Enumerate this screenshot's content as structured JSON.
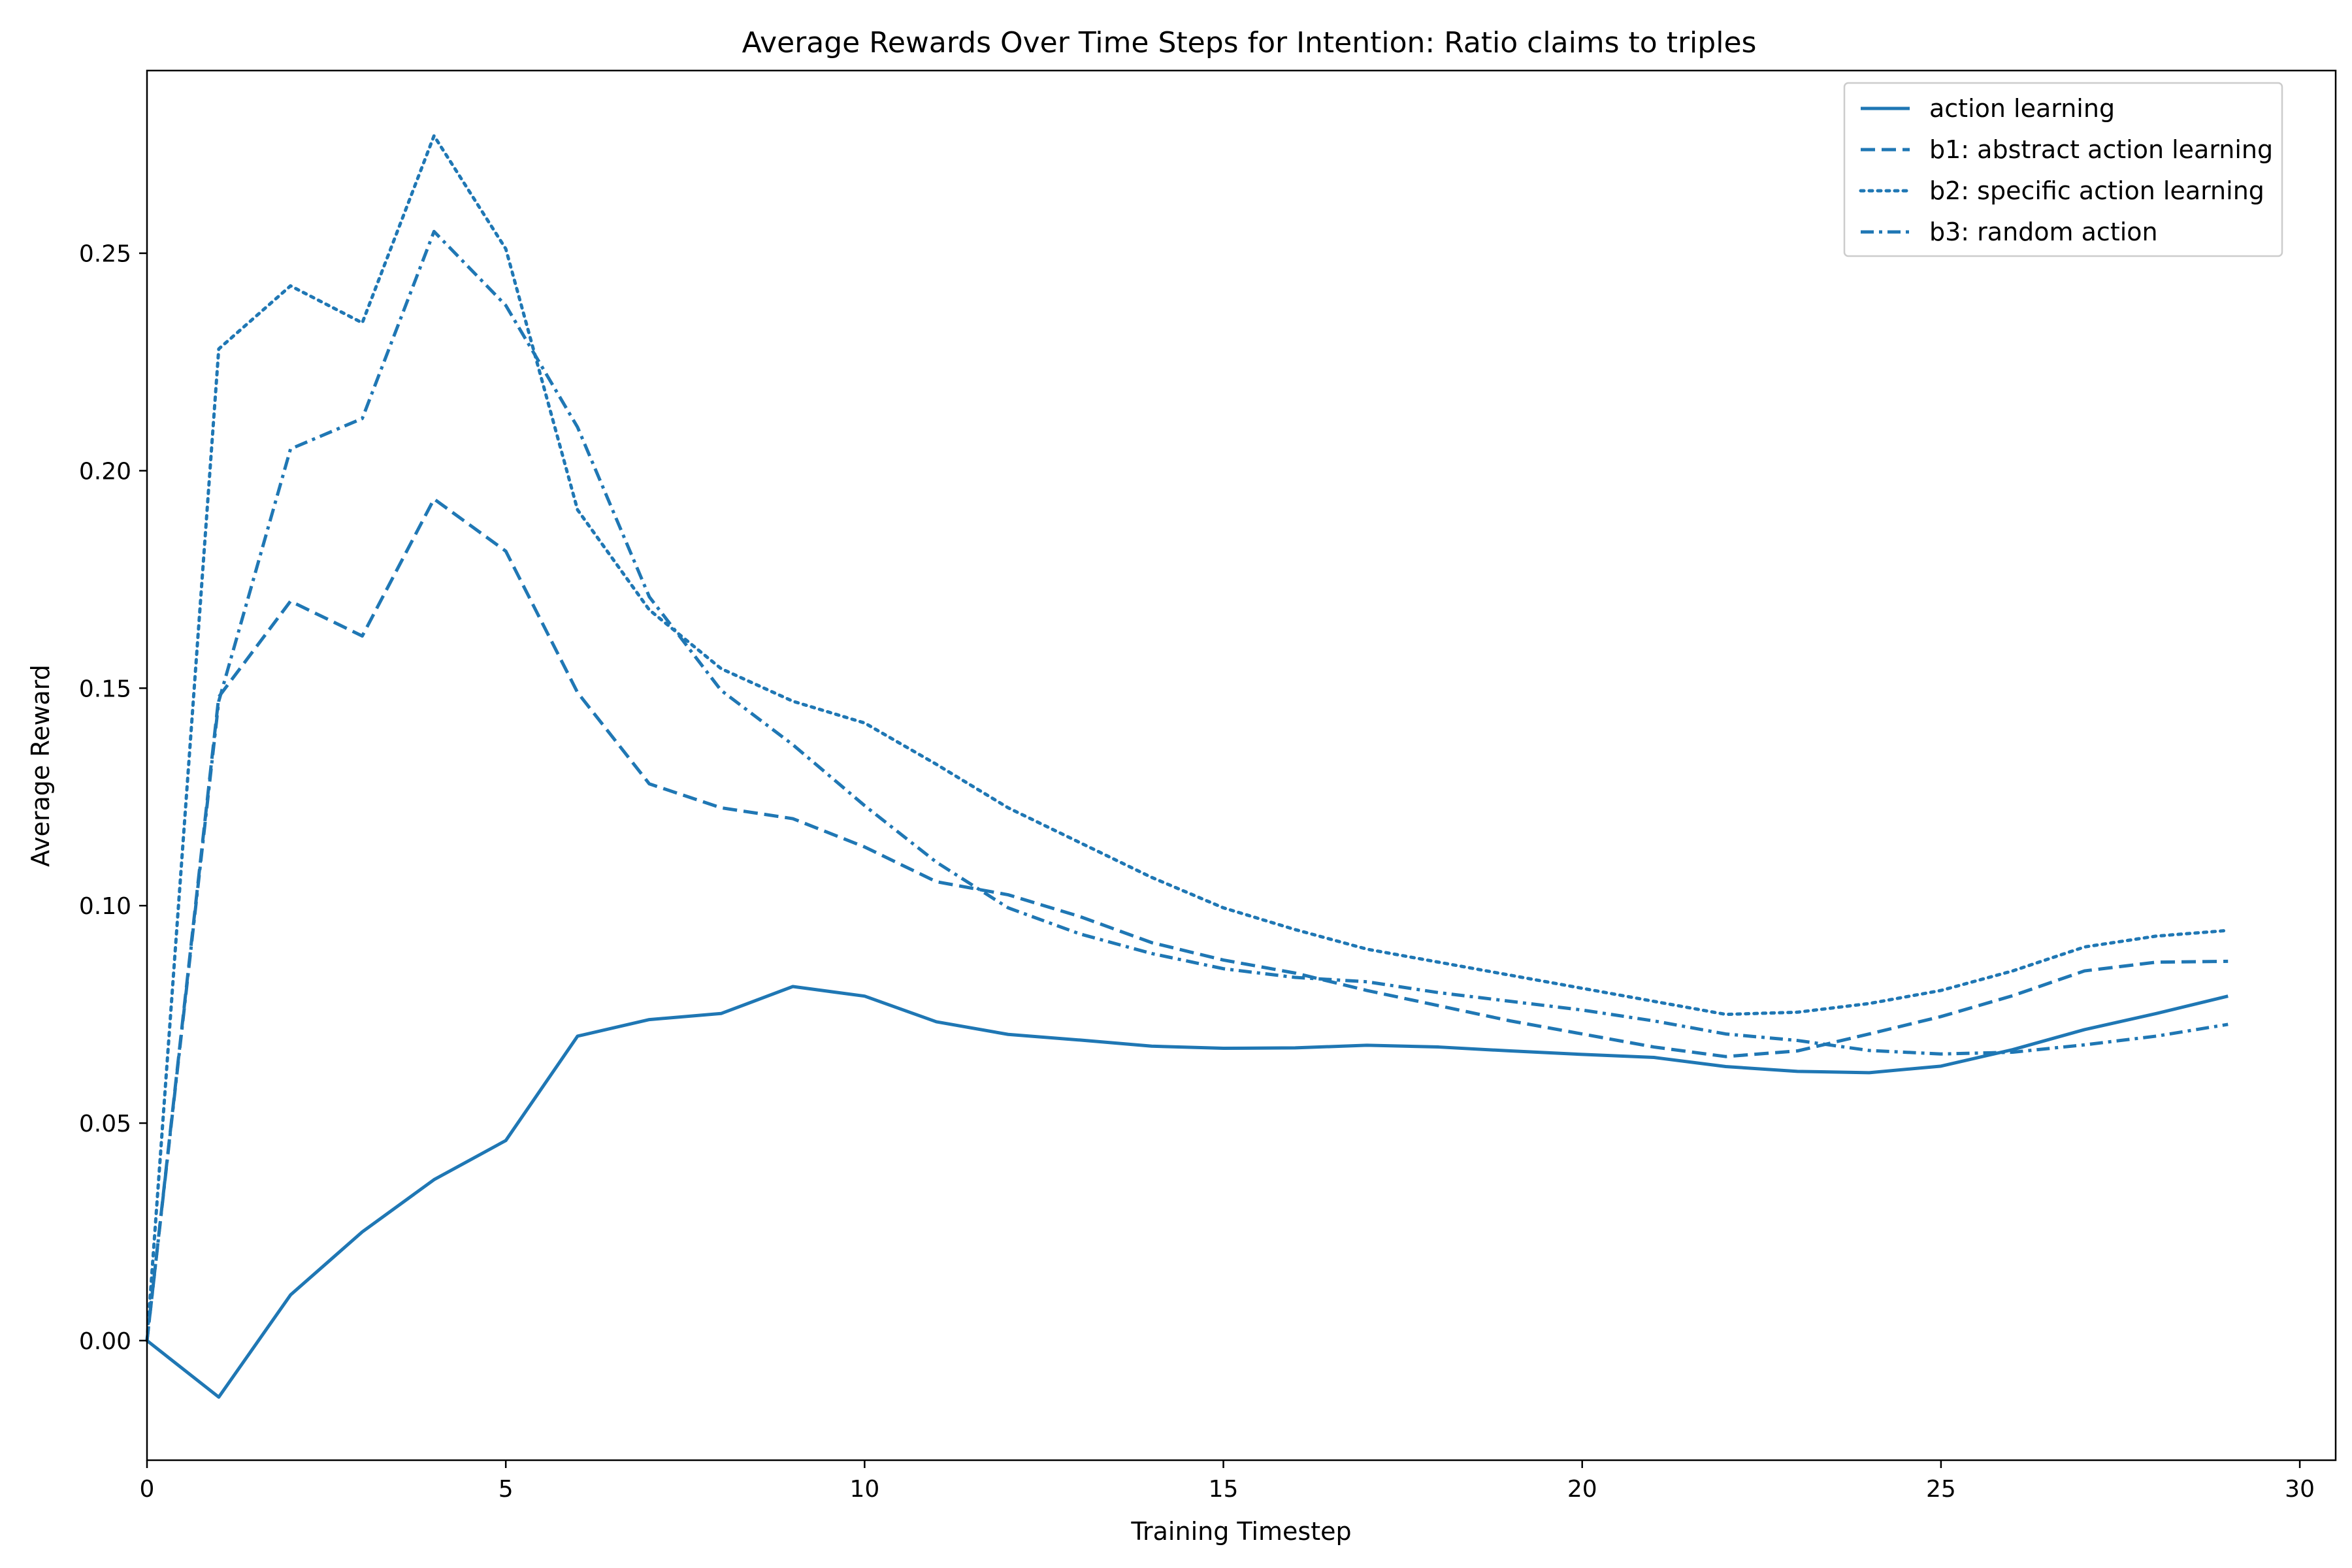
{
  "chart_data": {
    "type": "line",
    "title": "Average Rewards Over Time Steps for Intention: Ratio claims to triples",
    "xlabel": "Training Timestep",
    "ylabel": "Average Reward",
    "xlim": [
      0,
      30.5
    ],
    "ylim": [
      -0.0275,
      0.292
    ],
    "xticks": [
      0,
      5,
      10,
      15,
      20,
      25,
      30
    ],
    "xtick_labels": [
      "0",
      "5",
      "10",
      "15",
      "20",
      "25",
      "30"
    ],
    "yticks": [
      0.0,
      0.05,
      0.1,
      0.15,
      0.2,
      0.25
    ],
    "ytick_labels": [
      "0.00",
      "0.05",
      "0.10",
      "0.15",
      "0.20",
      "0.25"
    ],
    "grid": false,
    "legend_position": "top-right",
    "color": "#1f77b4",
    "x": [
      0,
      1,
      2,
      3,
      4,
      5,
      6,
      7,
      8,
      9,
      10,
      11,
      12,
      13,
      14,
      15,
      16,
      17,
      18,
      19,
      20,
      21,
      22,
      23,
      24,
      25,
      26,
      27,
      28,
      29
    ],
    "series": [
      {
        "name": "action learning",
        "style": "solid",
        "values": [
          0.0,
          -0.013,
          0.0105,
          0.025,
          0.037,
          0.046,
          0.07,
          0.0738,
          0.0752,
          0.0814,
          0.0792,
          0.0733,
          0.0704,
          0.0691,
          0.0677,
          0.0672,
          0.0673,
          0.0679,
          0.0675,
          0.0666,
          0.0658,
          0.0651,
          0.063,
          0.0619,
          0.0616,
          0.0631,
          0.0669,
          0.0715,
          0.0752,
          0.0792
        ]
      },
      {
        "name": "b1: abstract action learning",
        "style": "dashed",
        "values": [
          0.0,
          0.148,
          0.17,
          0.162,
          0.1935,
          0.1815,
          0.149,
          0.128,
          0.1225,
          0.12,
          0.1135,
          0.1055,
          0.1025,
          0.0975,
          0.0915,
          0.0875,
          0.0845,
          0.0805,
          0.077,
          0.0735,
          0.0705,
          0.0675,
          0.0653,
          0.0666,
          0.0705,
          0.0745,
          0.0793,
          0.085,
          0.087,
          0.0872
        ]
      },
      {
        "name": "b2: specific action learning",
        "style": "dotted",
        "values": [
          0.0,
          0.228,
          0.2425,
          0.234,
          0.277,
          0.251,
          0.191,
          0.168,
          0.1545,
          0.147,
          0.142,
          0.1325,
          0.1225,
          0.1145,
          0.1065,
          0.0995,
          0.0945,
          0.09,
          0.087,
          0.084,
          0.081,
          0.078,
          0.075,
          0.0755,
          0.0775,
          0.0805,
          0.085,
          0.0905,
          0.093,
          0.0943
        ]
      },
      {
        "name": "b3: random action",
        "style": "dashdot",
        "values": [
          0.0,
          0.147,
          0.205,
          0.212,
          0.255,
          0.238,
          0.21,
          0.171,
          0.1495,
          0.137,
          0.123,
          0.11,
          0.0995,
          0.0935,
          0.089,
          0.0855,
          0.0835,
          0.0825,
          0.08,
          0.078,
          0.076,
          0.0735,
          0.0705,
          0.069,
          0.0667,
          0.0659,
          0.0663,
          0.068,
          0.07,
          0.0727
        ]
      }
    ]
  }
}
